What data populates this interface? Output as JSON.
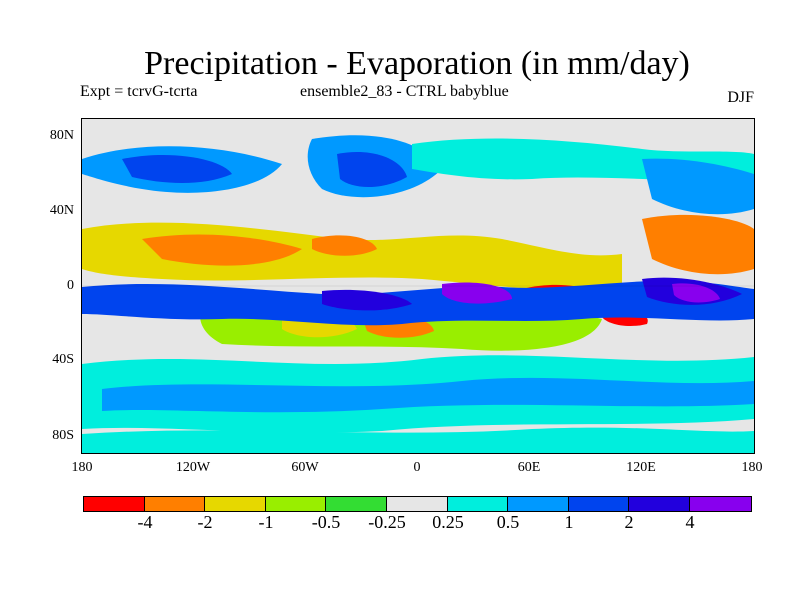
{
  "title": "Precipitation - Evaporation (in mm/day)",
  "subtitle_left": "Expt = tcrvG-tcrta",
  "subtitle_center": "ensemble2_83 - CTRL babyblue",
  "season": "DJF",
  "lat_labels": [
    "80N",
    "40N",
    "0",
    "40S",
    "80S"
  ],
  "lon_labels": [
    "180",
    "120W",
    "60W",
    "0",
    "60E",
    "120E",
    "180"
  ],
  "colorbar": {
    "labels": [
      "-4",
      "-2",
      "-1",
      "-0.5",
      "-0.25",
      "0.25",
      "0.5",
      "1",
      "2",
      "4"
    ],
    "colors": [
      "#ff0000",
      "#ff7f00",
      "#e6d800",
      "#99ee00",
      "#33dd33",
      "#e6e6e6",
      "#00eedd",
      "#0099ff",
      "#0044ee",
      "#2200dd",
      "#8800ee"
    ]
  },
  "chart_data": {
    "type": "heatmap",
    "title": "Precipitation - Evaporation (in mm/day)",
    "x_range": [
      -180,
      180
    ],
    "y_range": [
      -90,
      90
    ],
    "levels": [
      -4,
      -2,
      -1,
      -0.5,
      -0.25,
      0.25,
      0.5,
      1,
      2,
      4
    ],
    "units": "mm/day"
  }
}
